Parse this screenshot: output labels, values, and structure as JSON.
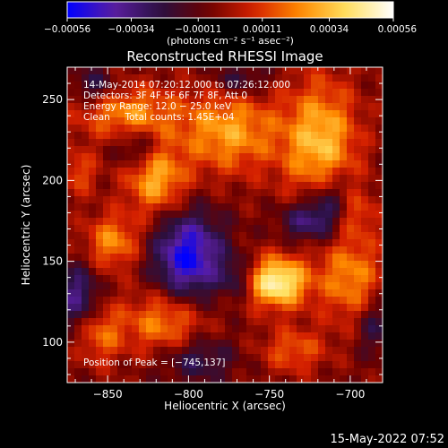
{
  "chart_data": {
    "type": "heatmap",
    "title": "Reconstructed RHESSI Image",
    "xlabel": "Heliocentric X (arcsec)",
    "ylabel": "Heliocentric Y (arcsec)",
    "xlim": [
      -875,
      -680
    ],
    "ylim": [
      75,
      270
    ],
    "xticks": [
      -850,
      -800,
      -750,
      -700
    ],
    "yticks": [
      100,
      150,
      200,
      250
    ],
    "xtick_labels": [
      "−850",
      "−800",
      "−750",
      "−700"
    ],
    "ytick_labels": [
      "100",
      "150",
      "200",
      "250"
    ],
    "colorbar": {
      "range": [
        -0.00056,
        0.00056
      ],
      "ticks": [
        -0.00056,
        -0.00034,
        -0.00011,
        0.00011,
        0.00034,
        0.00056
      ],
      "tick_labels": [
        "−0.00056",
        "−0.00034",
        "−0.00011",
        "0.00011",
        "0.00034",
        "0.00056"
      ],
      "units_line": "(photons cm⁻² s⁻¹ asec⁻²)",
      "colormap": [
        "#0000ff",
        "#5a1ea0",
        "#2a1040",
        "#6a0000",
        "#d42000",
        "#ff8a00",
        "#ffe060",
        "#ffffff"
      ]
    },
    "annotations": [
      "14‑May‑2014 07:20:12.000 to 07:26:12.000",
      "Detectors: 3F 4F 5F 6F 7F 8F, Att 0",
      "Energy Range: 12.0 − 25.0 keV",
      "Clean     Total counts: 1.45E+04"
    ],
    "peak_label": "Position of Peak = [−745,137]",
    "peak": [
      -745,
      137
    ],
    "sources": [
      {
        "x": -745,
        "y": 137,
        "amp": 0.00056,
        "sx": 13,
        "sy": 11
      },
      {
        "x": -775,
        "y": 230,
        "amp": 0.00034,
        "sx": 22,
        "sy": 18
      },
      {
        "x": -718,
        "y": 222,
        "amp": 0.0004,
        "sx": 16,
        "sy": 28
      },
      {
        "x": -838,
        "y": 242,
        "amp": 0.0003,
        "sx": 22,
        "sy": 12
      },
      {
        "x": -820,
        "y": 200,
        "amp": 0.00036,
        "sx": 13,
        "sy": 15
      },
      {
        "x": -847,
        "y": 162,
        "amp": 0.0003,
        "sx": 12,
        "sy": 12
      },
      {
        "x": -815,
        "y": 112,
        "amp": 0.0003,
        "sx": 18,
        "sy": 14
      },
      {
        "x": -855,
        "y": 105,
        "amp": 0.00024,
        "sx": 10,
        "sy": 13
      },
      {
        "x": -700,
        "y": 140,
        "amp": 0.0003,
        "sx": 14,
        "sy": 20
      },
      {
        "x": -735,
        "y": 95,
        "amp": 0.00022,
        "sx": 14,
        "sy": 10
      },
      {
        "x": -868,
        "y": 205,
        "amp": 0.0002,
        "sx": 8,
        "sy": 10
      },
      {
        "x": -698,
        "y": 180,
        "amp": 0.00018,
        "sx": 10,
        "sy": 10
      },
      {
        "x": -800,
        "y": 153,
        "amp": -0.00048,
        "sx": 15,
        "sy": 19
      },
      {
        "x": -728,
        "y": 175,
        "amp": -0.00028,
        "sx": 11,
        "sy": 9
      },
      {
        "x": -712,
        "y": 185,
        "amp": -0.00032,
        "sx": 10,
        "sy": 14
      },
      {
        "x": -795,
        "y": 90,
        "amp": -0.00022,
        "sx": 16,
        "sy": 10
      },
      {
        "x": -868,
        "y": 128,
        "amp": -0.0003,
        "sx": 9,
        "sy": 14
      },
      {
        "x": -858,
        "y": 258,
        "amp": -0.00022,
        "sx": 10,
        "sy": 8
      },
      {
        "x": -685,
        "y": 110,
        "amp": -0.0002,
        "sx": 8,
        "sy": 12
      },
      {
        "x": -768,
        "y": 262,
        "amp": -0.0002,
        "sx": 12,
        "sy": 7
      },
      {
        "x": -832,
        "y": 220,
        "amp": -0.00022,
        "sx": 9,
        "sy": 8
      },
      {
        "x": -770,
        "y": 140,
        "amp": -0.00018,
        "sx": 7,
        "sy": 9
      }
    ]
  },
  "footer_date": "15‑May‑2022 07:52"
}
